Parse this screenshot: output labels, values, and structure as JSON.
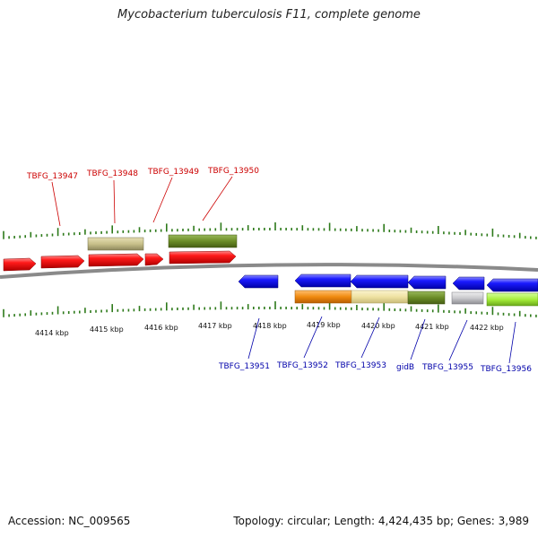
{
  "header": {
    "title": "Mycobacterium tuberculosis F11, complete genome"
  },
  "footer": {
    "accession": "Accession: NC_009565",
    "summary": "Topology: circular; Length: 4,424,435 bp; Genes: 3,989"
  },
  "scale": {
    "labels": [
      "4414 kbp",
      "4415 kbp",
      "4416 kbp",
      "4417 kbp",
      "4418 kbp",
      "4419 kbp",
      "4420 kbp",
      "4421 kbp",
      "4422 kbp"
    ]
  },
  "genes_top": [
    {
      "label": "TBFG_13947",
      "color": "#cc0000"
    },
    {
      "label": "TBFG_13948",
      "color": "#cc0000"
    },
    {
      "label": "TBFG_13949",
      "color": "#cc0000"
    },
    {
      "label": "TBFG_13950",
      "color": "#cc0000"
    }
  ],
  "genes_bottom": [
    {
      "label": "TBFG_13951",
      "color": "#0000aa"
    },
    {
      "label": "TBFG_13952",
      "color": "#0000aa"
    },
    {
      "label": "TBFG_13953",
      "color": "#0000aa"
    },
    {
      "label": "gidB",
      "color": "#0000aa"
    },
    {
      "label": "TBFG_13955",
      "color": "#0000aa"
    },
    {
      "label": "TBFG_13956",
      "color": "#0000aa"
    }
  ],
  "feature_colors": {
    "forward_gene": "#ee1111",
    "reverse_gene": "#1515ee",
    "tick": "#2d7a1a",
    "backbone": "#8a8a8a",
    "khaki_feature": "#c8c08a",
    "olive_feature": "#6b8c26",
    "orange_feature": "#f08a10",
    "pale_yellow_feature": "#efe2a2",
    "grey_feature": "#c8c8cc",
    "lime_feature": "#a6ee3a"
  }
}
